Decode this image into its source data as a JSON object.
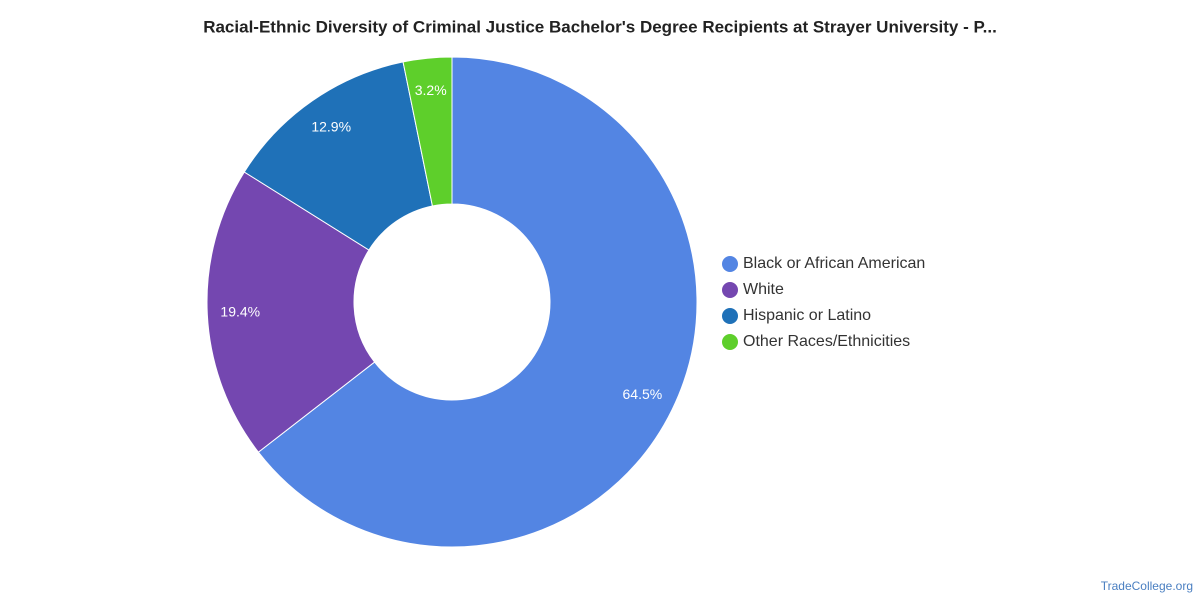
{
  "chart_data": {
    "type": "pie",
    "title": "Racial-Ethnic Diversity of Criminal Justice Bachelor's Degree Recipients at Strayer University - P...",
    "categories": [
      "Black or African American",
      "White",
      "Hispanic or Latino",
      "Other Races/Ethnicities"
    ],
    "values": [
      64.5,
      19.4,
      12.9,
      3.2
    ],
    "value_labels": [
      "64.5%",
      "19.4%",
      "12.9%",
      "3.2%"
    ],
    "colors": [
      "#5385e3",
      "#7447b0",
      "#1f71b8",
      "#5ecf2b"
    ],
    "legend": "right",
    "watermark": "TradeCollege.org"
  }
}
